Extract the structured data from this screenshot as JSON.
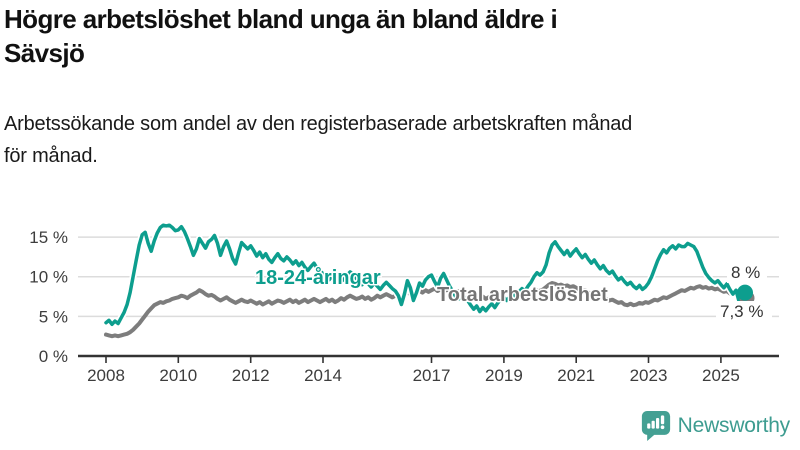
{
  "header": {
    "title": "Högre arbetslöshet bland unga än bland äldre i\nSävsjö",
    "subtitle": "Arbetssökande som andel av den registerbaserade arbetskraften månad\nför månad."
  },
  "footer": {
    "brand": "Newsworthy"
  },
  "colors": {
    "youth": "#0d9e8e",
    "total": "#7d7d7d",
    "total_label": "#757575",
    "grid": "#dcdcdc",
    "axis": "#333333",
    "annotation": "#333333",
    "brand": "#44a093"
  },
  "chart_data": {
    "type": "line",
    "title": "Högre arbetslöshet bland unga än bland äldre i Sävsjö",
    "subtitle": "Arbetssökande som andel av den registerbaserade arbetskraften månad för månad.",
    "unit": "%",
    "x_start": "2008-01",
    "x_end": "2025-09",
    "x_frequency": "monthly",
    "xlim": [
      2008,
      2026
    ],
    "ylim": [
      0,
      17
    ],
    "grid": "horizontal",
    "x_tick_labels": [
      "2008",
      "2010",
      "2012",
      "2014",
      "2017",
      "2019",
      "2021",
      "2023",
      "2025"
    ],
    "y_tick_labels": [
      "0 %",
      "5 %",
      "10 %",
      "15 %"
    ],
    "series": [
      {
        "name": "18-24-åringar",
        "color": "#0d9e8e",
        "end_label": "8 %",
        "end_value": 8.0,
        "values": [
          4.2,
          4.5,
          4.0,
          4.4,
          4.1,
          4.8,
          5.5,
          6.5,
          8.0,
          10.0,
          12.0,
          14.0,
          15.3,
          15.6,
          14.2,
          13.2,
          14.5,
          15.5,
          16.2,
          16.5,
          16.4,
          16.5,
          16.2,
          15.8,
          15.9,
          16.3,
          15.7,
          14.8,
          13.8,
          12.7,
          13.5,
          14.8,
          14.2,
          13.6,
          14.4,
          14.7,
          15.2,
          14.2,
          12.7,
          13.8,
          14.5,
          13.5,
          12.3,
          11.6,
          13.0,
          14.3,
          13.9,
          13.5,
          13.9,
          13.3,
          12.6,
          13.1,
          12.4,
          12.9,
          12.2,
          11.8,
          12.4,
          12.9,
          12.3,
          12.0,
          12.5,
          12.1,
          11.6,
          12.0,
          11.4,
          11.8,
          11.2,
          10.8,
          11.3,
          11.7,
          11.1,
          10.7,
          10.4,
          10.0,
          9.6,
          10.1,
          9.5,
          9.9,
          9.4,
          9.7,
          10.2,
          10.6,
          10.3,
          9.8,
          9.4,
          9.0,
          9.5,
          9.1,
          8.7,
          9.2,
          8.8,
          8.4,
          8.9,
          9.3,
          8.9,
          8.5,
          8.2,
          7.6,
          6.5,
          7.8,
          9.5,
          8.6,
          7.0,
          8.0,
          9.2,
          8.8,
          9.6,
          10.0,
          10.2,
          9.4,
          8.7,
          9.8,
          10.4,
          9.6,
          8.8,
          8.2,
          7.5,
          7.2,
          7.8,
          7.4,
          7.0,
          6.4,
          5.9,
          6.3,
          5.6,
          6.1,
          5.7,
          6.2,
          6.6,
          6.1,
          6.7,
          7.1,
          7.4,
          7.0,
          7.5,
          7.9,
          7.5,
          8.1,
          8.5,
          8.2,
          8.8,
          9.3,
          10.0,
          10.5,
          10.2,
          10.6,
          11.5,
          13.0,
          14.0,
          14.4,
          13.8,
          13.3,
          12.8,
          13.3,
          12.6,
          13.1,
          13.5,
          12.9,
          12.4,
          12.8,
          12.2,
          11.7,
          12.1,
          11.5,
          11.0,
          11.4,
          10.8,
          10.4,
          10.7,
          10.1,
          9.6,
          9.9,
          9.4,
          9.0,
          9.3,
          8.8,
          8.5,
          8.9,
          8.4,
          8.7,
          9.2,
          10.0,
          11.0,
          12.0,
          12.8,
          13.4,
          13.0,
          13.6,
          13.9,
          13.5,
          14.0,
          13.8,
          13.8,
          14.2,
          14.0,
          13.8,
          13.2,
          12.2,
          11.2,
          10.4,
          9.9,
          9.5,
          9.2,
          9.5,
          9.0,
          8.6,
          9.1,
          8.4,
          7.8,
          8.3,
          6.9,
          7.6,
          8.0
        ]
      },
      {
        "name": "Total arbetslöshet",
        "color": "#7d7d7d",
        "end_label": "7,3 %",
        "end_value": 7.3,
        "values": [
          2.7,
          2.6,
          2.5,
          2.6,
          2.5,
          2.6,
          2.7,
          2.8,
          3.0,
          3.3,
          3.7,
          4.1,
          4.6,
          5.1,
          5.6,
          6.0,
          6.4,
          6.6,
          6.8,
          6.7,
          6.9,
          7.0,
          7.2,
          7.3,
          7.4,
          7.6,
          7.5,
          7.3,
          7.6,
          7.8,
          8.0,
          8.3,
          8.1,
          7.8,
          7.6,
          7.7,
          7.5,
          7.2,
          7.0,
          7.2,
          7.4,
          7.1,
          6.9,
          6.7,
          6.9,
          7.1,
          6.9,
          6.8,
          7.0,
          6.8,
          6.6,
          6.8,
          6.5,
          6.7,
          6.9,
          6.6,
          6.8,
          7.0,
          6.9,
          6.7,
          6.9,
          7.1,
          6.8,
          7.0,
          6.7,
          6.9,
          7.1,
          6.8,
          7.0,
          7.2,
          7.0,
          6.8,
          7.0,
          7.2,
          6.9,
          7.1,
          6.8,
          7.0,
          7.3,
          7.1,
          7.4,
          7.6,
          7.4,
          7.2,
          7.3,
          7.5,
          7.2,
          7.4,
          7.1,
          7.3,
          7.6,
          7.4,
          7.6,
          7.8,
          7.6,
          7.4,
          7.6,
          7.8,
          7.5,
          7.7,
          8.0,
          7.8,
          8.1,
          7.9,
          8.2,
          8.0,
          8.3,
          8.1,
          8.3,
          8.5,
          8.2,
          8.4,
          8.6,
          8.3,
          8.5,
          8.2,
          8.0,
          8.2,
          7.9,
          7.7,
          7.9,
          7.6,
          7.4,
          7.6,
          7.3,
          7.5,
          7.2,
          7.4,
          7.6,
          7.3,
          7.5,
          7.7,
          7.5,
          7.3,
          7.5,
          7.7,
          7.4,
          7.6,
          7.8,
          7.5,
          7.7,
          7.9,
          8.1,
          8.3,
          8.2,
          8.4,
          8.7,
          9.0,
          9.2,
          9.1,
          8.9,
          9.0,
          8.8,
          8.9,
          8.7,
          8.8,
          8.6,
          8.4,
          8.2,
          8.3,
          8.0,
          7.8,
          7.9,
          7.6,
          7.4,
          7.5,
          7.2,
          7.0,
          7.1,
          6.9,
          6.7,
          6.8,
          6.5,
          6.4,
          6.6,
          6.4,
          6.5,
          6.7,
          6.6,
          6.8,
          6.7,
          6.9,
          7.1,
          7.0,
          7.2,
          7.4,
          7.3,
          7.5,
          7.7,
          7.9,
          8.1,
          8.3,
          8.2,
          8.4,
          8.6,
          8.5,
          8.7,
          8.8,
          8.6,
          8.7,
          8.5,
          8.6,
          8.4,
          8.5,
          8.3,
          8.1,
          8.2,
          7.9,
          7.7,
          7.8,
          7.4,
          7.2,
          7.3
        ]
      }
    ]
  }
}
